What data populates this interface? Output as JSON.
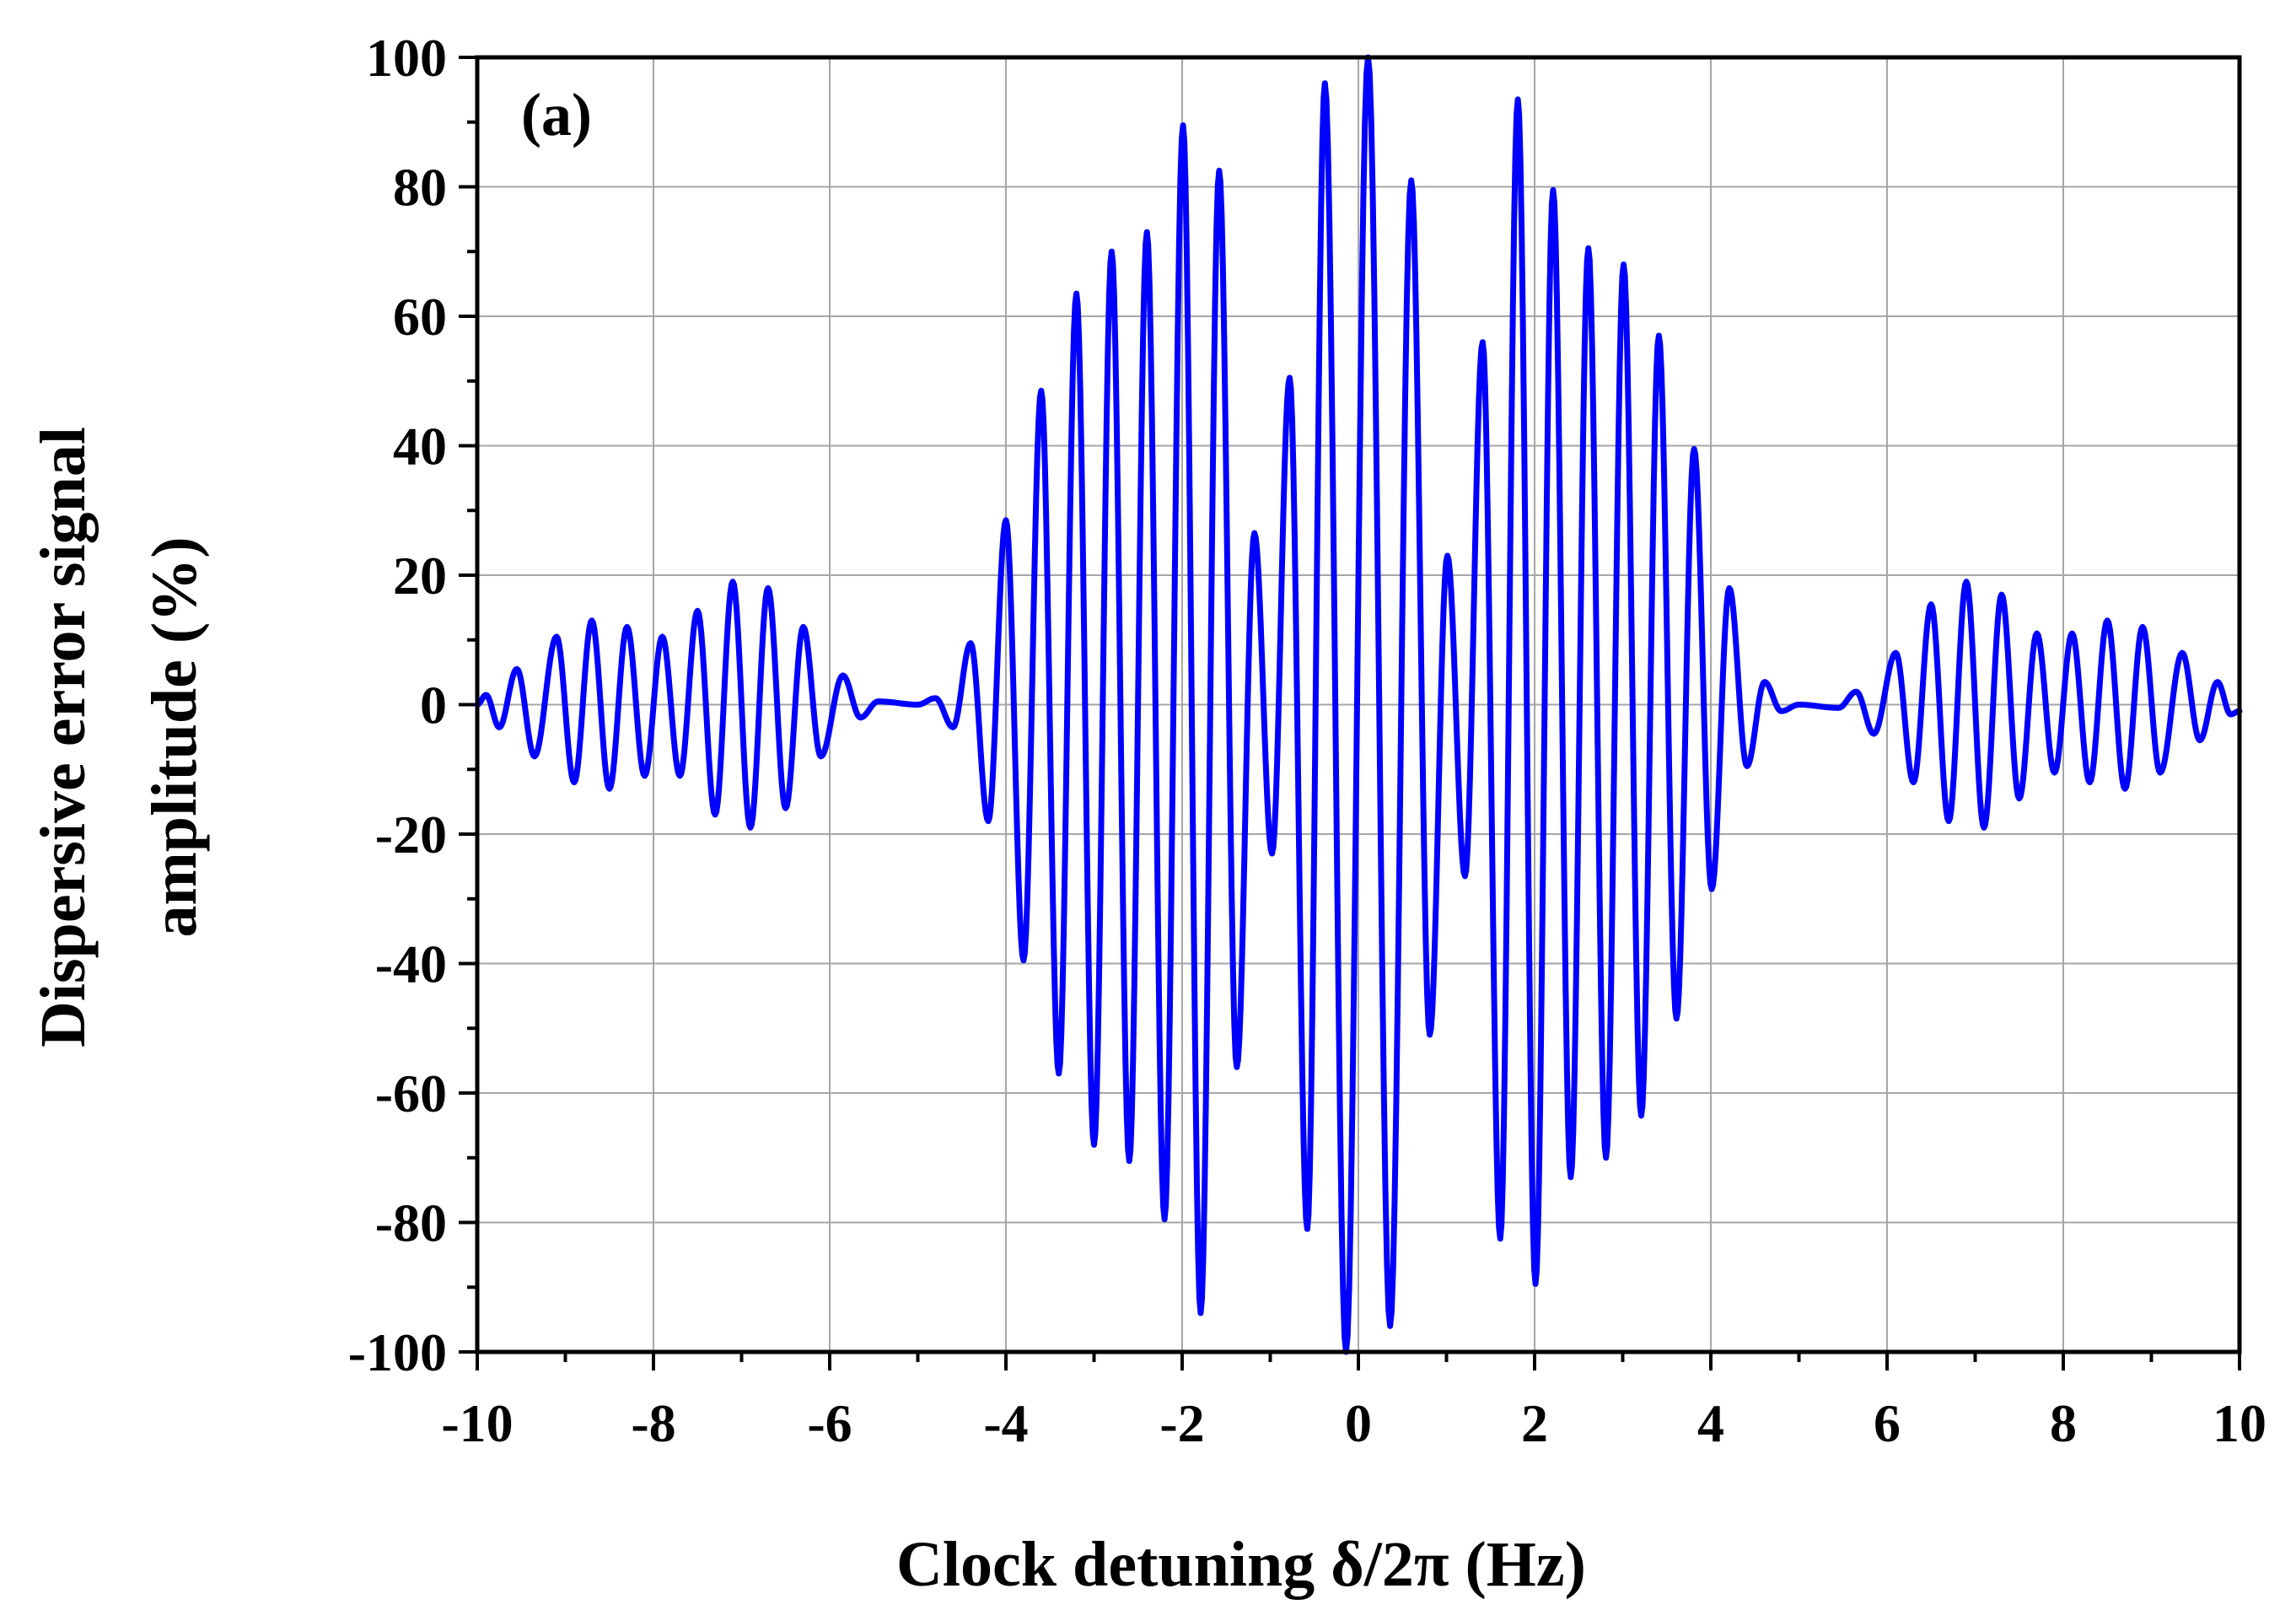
{
  "chart_data": {
    "type": "line",
    "panel_label": "(a)",
    "xlabel": "Clock detuning δ/2π (Hz)",
    "ylabel_line1": "Dispersive error signal",
    "ylabel_line2": "amplitude (%)",
    "xlim": [
      -10,
      10
    ],
    "ylim": [
      -100,
      100
    ],
    "x_ticks": [
      -10,
      -8,
      -6,
      -4,
      -2,
      0,
      2,
      4,
      6,
      8,
      10
    ],
    "y_ticks": [
      -100,
      -80,
      -60,
      -40,
      -20,
      0,
      20,
      40,
      60,
      80,
      100
    ],
    "x_minor_step": 1,
    "y_minor_step": 10,
    "grid": true,
    "series": [
      {
        "color": "#0000ff",
        "extrema": [
          [
            -10.0,
            0
          ],
          [
            -9.9,
            1.5
          ],
          [
            -9.75,
            -3.5
          ],
          [
            -9.55,
            5.5
          ],
          [
            -9.35,
            -8
          ],
          [
            -9.1,
            10.5
          ],
          [
            -8.9,
            -12
          ],
          [
            -8.7,
            13
          ],
          [
            -8.5,
            -13
          ],
          [
            -8.3,
            12
          ],
          [
            -8.1,
            -11
          ],
          [
            -7.9,
            10.5
          ],
          [
            -7.7,
            -11
          ],
          [
            -7.5,
            14.5
          ],
          [
            -7.3,
            -17
          ],
          [
            -7.1,
            19
          ],
          [
            -6.9,
            -19
          ],
          [
            -6.7,
            18
          ],
          [
            -6.5,
            -16
          ],
          [
            -6.3,
            12
          ],
          [
            -6.1,
            -8
          ],
          [
            -5.85,
            4.5
          ],
          [
            -5.65,
            -2
          ],
          [
            -5.45,
            0.5
          ],
          [
            -5.0,
            0
          ],
          [
            -4.8,
            1
          ],
          [
            -4.6,
            -3.5
          ],
          [
            -4.4,
            9.5
          ],
          [
            -4.2,
            -18
          ],
          [
            -4.0,
            28.5
          ],
          [
            -3.8,
            -39.5
          ],
          [
            -3.6,
            48.5
          ],
          [
            -3.4,
            -57
          ],
          [
            -3.2,
            63.5
          ],
          [
            -3.0,
            -68
          ],
          [
            -2.8,
            70
          ],
          [
            -2.6,
            -70.5
          ],
          [
            -2.4,
            73
          ],
          [
            -2.2,
            -79.5
          ],
          [
            -1.99,
            89.5
          ],
          [
            -1.79,
            -94
          ],
          [
            -1.58,
            82.5
          ],
          [
            -1.38,
            -56
          ],
          [
            -1.18,
            26.5
          ],
          [
            -0.98,
            -23
          ],
          [
            -0.78,
            50.5
          ],
          [
            -0.58,
            -81
          ],
          [
            -0.38,
            96
          ],
          [
            -0.14,
            -100
          ],
          [
            0.11,
            100
          ],
          [
            0.36,
            -96
          ],
          [
            0.6,
            81
          ],
          [
            0.81,
            -51
          ],
          [
            1.01,
            23
          ],
          [
            1.21,
            -26.5
          ],
          [
            1.41,
            56
          ],
          [
            1.61,
            -82.5
          ],
          [
            1.81,
            93.5
          ],
          [
            2.01,
            -89.5
          ],
          [
            2.21,
            79.5
          ],
          [
            2.41,
            -73
          ],
          [
            2.61,
            70.5
          ],
          [
            2.81,
            -70
          ],
          [
            3.01,
            68
          ],
          [
            3.21,
            -63.5
          ],
          [
            3.41,
            57
          ],
          [
            3.61,
            -48.5
          ],
          [
            3.81,
            39.5
          ],
          [
            4.01,
            -28.5
          ],
          [
            4.21,
            18
          ],
          [
            4.41,
            -9.5
          ],
          [
            4.61,
            3.5
          ],
          [
            4.8,
            -1
          ],
          [
            5.0,
            0
          ],
          [
            5.45,
            -0.5
          ],
          [
            5.65,
            2
          ],
          [
            5.85,
            -4.5
          ],
          [
            6.1,
            8
          ],
          [
            6.3,
            -12
          ],
          [
            6.5,
            15.5
          ],
          [
            6.7,
            -18
          ],
          [
            6.9,
            19
          ],
          [
            7.1,
            -19
          ],
          [
            7.3,
            17
          ],
          [
            7.5,
            -14.5
          ],
          [
            7.7,
            11
          ],
          [
            7.9,
            -10.5
          ],
          [
            8.1,
            11
          ],
          [
            8.3,
            -12
          ],
          [
            8.5,
            13
          ],
          [
            8.7,
            -13
          ],
          [
            8.9,
            12
          ],
          [
            9.1,
            -10.5
          ],
          [
            9.35,
            8
          ],
          [
            9.55,
            -5.5
          ],
          [
            9.75,
            3.5
          ],
          [
            9.9,
            -1.5
          ],
          [
            10.0,
            -1
          ]
        ]
      }
    ]
  }
}
